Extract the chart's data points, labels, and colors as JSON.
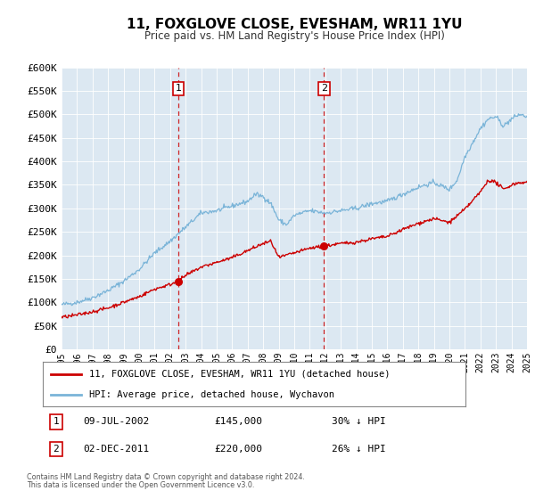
{
  "title": "11, FOXGLOVE CLOSE, EVESHAM, WR11 1YU",
  "subtitle": "Price paid vs. HM Land Registry's House Price Index (HPI)",
  "legend_line1": "11, FOXGLOVE CLOSE, EVESHAM, WR11 1YU (detached house)",
  "legend_line2": "HPI: Average price, detached house, Wychavon",
  "footnote1": "Contains HM Land Registry data © Crown copyright and database right 2024.",
  "footnote2": "This data is licensed under the Open Government Licence v3.0.",
  "sale1_date": "09-JUL-2002",
  "sale1_price": "£145,000",
  "sale1_hpi": "30% ↓ HPI",
  "sale2_date": "02-DEC-2011",
  "sale2_price": "£220,000",
  "sale2_hpi": "26% ↓ HPI",
  "sale1_year": 2002.52,
  "sale1_value": 145000,
  "sale2_year": 2011.92,
  "sale2_value": 220000,
  "hpi_color": "#7ab4d8",
  "price_color": "#cc0000",
  "vline_color": "#cc0000",
  "bg_color": "#dce8f2",
  "ylim_min": 0,
  "ylim_max": 600000,
  "xlim_min": 1995,
  "xlim_max": 2025,
  "yticks": [
    0,
    50000,
    100000,
    150000,
    200000,
    250000,
    300000,
    350000,
    400000,
    450000,
    500000,
    550000,
    600000
  ],
  "ytick_labels": [
    "£0",
    "£50K",
    "£100K",
    "£150K",
    "£200K",
    "£250K",
    "£300K",
    "£350K",
    "£400K",
    "£450K",
    "£500K",
    "£550K",
    "£600K"
  ],
  "xticks": [
    1995,
    1996,
    1997,
    1998,
    1999,
    2000,
    2001,
    2002,
    2003,
    2004,
    2005,
    2006,
    2007,
    2008,
    2009,
    2010,
    2011,
    2012,
    2013,
    2014,
    2015,
    2016,
    2017,
    2018,
    2019,
    2020,
    2021,
    2022,
    2023,
    2024,
    2025
  ]
}
